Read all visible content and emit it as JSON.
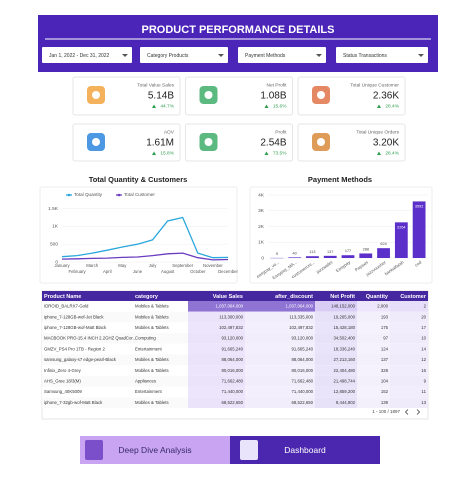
{
  "header": {
    "title": "PRODUCT PERFORMANCE DETAILS"
  },
  "filters": [
    "Jan 1, 2022 - Dec 31, 2022",
    "Category Products",
    "Payment Methods",
    "Status Transactions"
  ],
  "kpis": [
    {
      "label": "Total Value Sales",
      "value": "5.14B",
      "change": "44.7%"
    },
    {
      "label": "Net Profit",
      "value": "1.08B",
      "change": "15.6%"
    },
    {
      "label": "Total Unique Customer",
      "value": "2.36K",
      "change": "28.4%"
    },
    {
      "label": "AOV",
      "value": "1.61M",
      "change": "15.8%"
    },
    {
      "label": "Profit",
      "value": "2.54B",
      "change": "73.5%"
    },
    {
      "label": "Total Unique Orders",
      "value": "3.20K",
      "change": "28.4%"
    }
  ],
  "chart_data": [
    {
      "type": "line",
      "title": "Total Quantity & Customers",
      "categories": [
        "January",
        "February",
        "March",
        "April",
        "May",
        "June",
        "July",
        "August",
        "September",
        "October",
        "November",
        "December"
      ],
      "series": [
        {
          "name": "Total Quantity",
          "color": "#2aa7dc",
          "values": [
            150,
            180,
            250,
            330,
            420,
            500,
            620,
            1150,
            1250,
            250,
            120,
            130
          ]
        },
        {
          "name": "Total Customer",
          "color": "#6a3bbf",
          "values": [
            80,
            90,
            100,
            110,
            130,
            140,
            180,
            230,
            250,
            120,
            60,
            70
          ]
        }
      ],
      "ylim": [
        0,
        1600
      ],
      "yticks": [
        0,
        500,
        {
          "value": 1000,
          "label": "1K"
        },
        {
          "value": 1500,
          "label": "1.5K"
        }
      ],
      "grid": true
    },
    {
      "type": "bar",
      "title": "Payment Methods",
      "categories": [
        "easypay_vo...",
        "Easypay_MA...",
        "customercre...",
        "jazzwallet",
        "Easypay",
        "Payaxis",
        "jazzvoucher",
        "bankalfalah",
        "cod"
      ],
      "values": [
        5,
        40,
        113,
        137,
        177,
        288,
        624,
        2264,
        3592
      ],
      "color": "#5b2fc9",
      "ylim": [
        0,
        4000
      ],
      "yticks": [
        0,
        {
          "value": 1000,
          "label": "1K"
        },
        {
          "value": 2000,
          "label": "2K"
        },
        {
          "value": 3000,
          "label": "3K"
        },
        {
          "value": 4000,
          "label": "4K"
        }
      ],
      "grid": true
    }
  ],
  "table": {
    "columns": [
      "Product Name",
      "category",
      "Value Sales",
      "after_discount",
      "Net Profit",
      "Quantity",
      "Customer"
    ],
    "rows": [
      [
        "IDROID_BALRX7-Gold",
        "Mobiles & Tablets",
        "1,037,064,000",
        "1,037,064,000",
        "148,152,000",
        "2,000",
        "2"
      ],
      [
        "iphone_7-128GB-wof-Jet Black",
        "Mobiles & Tablets",
        "113,300,000",
        "113,335,000",
        "19,265,000",
        "193",
        "20"
      ],
      [
        "iphone_7-128GB-wof-Matt Black",
        "Mobiles & Tablets",
        "102,497,832",
        "102,497,832",
        "15,428,180",
        "175",
        "17"
      ],
      [
        "MACBOOK PRO-15.4 INCH 2.2GHZ QuadCor...",
        "Computing",
        "93,120,000",
        "93,120,000",
        "34,502,400",
        "97",
        "10"
      ],
      [
        "GMZV_PS4 Pro 1TB - Region 2",
        "Entertainment",
        "91,665,240",
        "91,665,240",
        "18,336,240",
        "124",
        "14"
      ],
      [
        "samsung_galaxy-s7 edge-pearl-Black",
        "Mobiles & Tablets",
        "88,064,000",
        "88,064,000",
        "27,213,160",
        "137",
        "12"
      ],
      [
        "Infinix_Zero 4-Grey",
        "Mobiles & Tablets",
        "80,016,000",
        "80,016,000",
        "22,404,480",
        "328",
        "16"
      ],
      [
        "AHS_Gree 18/3(M)",
        "Appliances",
        "71,662,480",
        "71,662,480",
        "21,498,744",
        "104",
        "9"
      ],
      [
        "Samsung_40K5009",
        "Entertainment",
        "71,440,000",
        "71,440,000",
        "12,859,200",
        "152",
        "11"
      ],
      [
        "iphone_7-32gb-wof-Matt Black",
        "Mobiles & Tablets",
        "68,522,650",
        "68,522,650",
        "9,444,902",
        "139",
        "13"
      ]
    ],
    "pagination": "1 - 100 / 1897"
  },
  "buttons": [
    "Deep Dive Analysis",
    "Dashboard"
  ]
}
